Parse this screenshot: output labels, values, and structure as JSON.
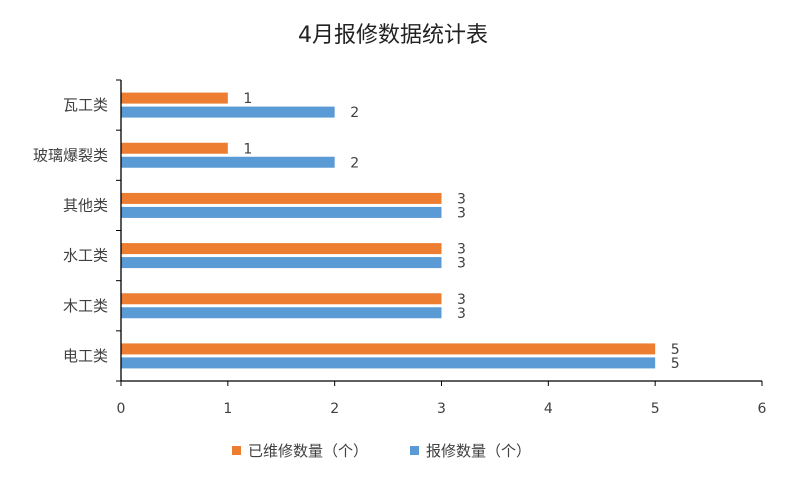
{
  "chart_data": {
    "type": "bar",
    "orientation": "horizontal",
    "title": "4月报修数据统计表",
    "categories": [
      "瓦工类",
      "玻璃爆裂类",
      "其他类",
      "水工类",
      "木工类",
      "电工类"
    ],
    "series": [
      {
        "name": "已维修数量（个）",
        "color": "#ED7D31",
        "values": [
          1,
          1,
          3,
          3,
          3,
          5
        ]
      },
      {
        "name": "报修数量（个）",
        "color": "#5B9BD5",
        "values": [
          2,
          2,
          3,
          3,
          3,
          5
        ]
      }
    ],
    "xlim": [
      0,
      6
    ],
    "xticks": [
      0,
      1,
      2,
      3,
      4,
      5,
      6
    ],
    "grid": false,
    "legend_position": "bottom",
    "data_labels": true
  }
}
